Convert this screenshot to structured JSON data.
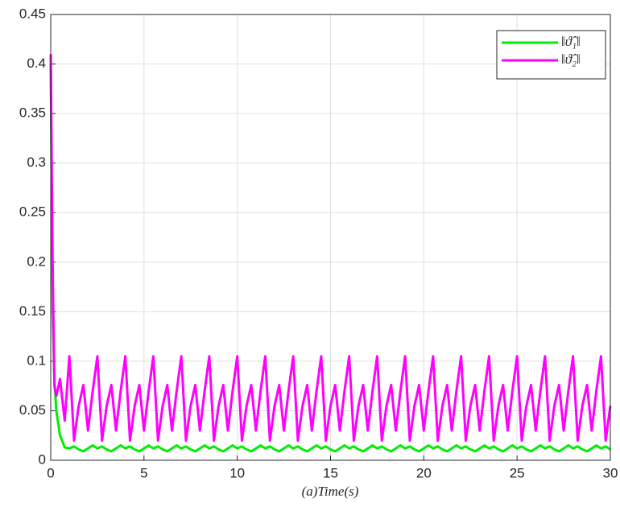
{
  "chart_data": {
    "type": "line",
    "xlabel": "(a)Time(s)",
    "x": [
      0,
      0.1,
      0.2,
      0.3,
      0.5,
      0.75,
      1.0,
      1.25,
      1.5,
      1.75,
      2.0,
      2.25,
      2.5,
      2.75,
      3.0,
      3.25,
      3.5,
      3.75,
      4.0,
      4.25,
      4.5,
      4.75,
      5.0,
      5.25,
      5.5,
      5.75,
      6.0,
      6.25,
      6.5,
      6.75,
      7.0,
      7.25,
      7.5,
      7.75,
      8.0,
      8.25,
      8.5,
      8.75,
      9.0,
      9.25,
      9.5,
      9.75,
      10.0,
      10.25,
      10.5,
      10.75,
      11.0,
      11.25,
      11.5,
      11.75,
      12.0,
      12.25,
      12.5,
      12.75,
      13.0,
      13.25,
      13.5,
      13.75,
      14.0,
      14.25,
      14.5,
      14.75,
      15.0,
      15.25,
      15.5,
      15.75,
      16.0,
      16.25,
      16.5,
      16.75,
      17.0,
      17.25,
      17.5,
      17.75,
      18.0,
      18.25,
      18.5,
      18.75,
      19.0,
      19.25,
      19.5,
      19.75,
      20.0,
      20.25,
      20.5,
      20.75,
      21.0,
      21.25,
      21.5,
      21.75,
      22.0,
      22.25,
      22.5,
      22.75,
      23.0,
      23.25,
      23.5,
      23.75,
      24.0,
      24.25,
      24.5,
      24.75,
      25.0,
      25.25,
      25.5,
      25.75,
      26.0,
      26.25,
      26.5,
      26.75,
      27.0,
      27.25,
      27.5,
      27.75,
      28.0,
      28.25,
      28.5,
      28.75,
      29.0,
      29.25,
      29.5,
      29.75,
      30.0
    ],
    "series": [
      {
        "name": "‖ϑ̂₁‖",
        "color": "#00ee00",
        "values": [
          0.4,
          0.15,
          0.08,
          0.05,
          0.025,
          0.013,
          0.012,
          0.014,
          0.011,
          0.009,
          0.012,
          0.015,
          0.012,
          0.014,
          0.011,
          0.009,
          0.012,
          0.015,
          0.012,
          0.014,
          0.011,
          0.009,
          0.012,
          0.015,
          0.012,
          0.014,
          0.011,
          0.009,
          0.012,
          0.015,
          0.012,
          0.014,
          0.011,
          0.009,
          0.012,
          0.015,
          0.012,
          0.014,
          0.011,
          0.009,
          0.012,
          0.015,
          0.012,
          0.014,
          0.011,
          0.009,
          0.012,
          0.015,
          0.012,
          0.014,
          0.011,
          0.009,
          0.012,
          0.015,
          0.012,
          0.014,
          0.011,
          0.009,
          0.012,
          0.015,
          0.012,
          0.014,
          0.011,
          0.009,
          0.012,
          0.015,
          0.012,
          0.014,
          0.011,
          0.009,
          0.012,
          0.015,
          0.012,
          0.014,
          0.011,
          0.009,
          0.012,
          0.015,
          0.012,
          0.014,
          0.011,
          0.009,
          0.012,
          0.015,
          0.012,
          0.014,
          0.011,
          0.009,
          0.012,
          0.015,
          0.012,
          0.014,
          0.011,
          0.009,
          0.012,
          0.015,
          0.012,
          0.014,
          0.011,
          0.009,
          0.012,
          0.015,
          0.012,
          0.014,
          0.011,
          0.009,
          0.012,
          0.015,
          0.012,
          0.014,
          0.011,
          0.009,
          0.012,
          0.015,
          0.012,
          0.014,
          0.011,
          0.009,
          0.012,
          0.015,
          0.012,
          0.014,
          0.011
        ]
      },
      {
        "name": "‖ϑ̂₂‖",
        "color": "#ff00ff",
        "values": [
          0.41,
          0.2,
          0.075,
          0.065,
          0.082,
          0.04,
          0.105,
          0.02,
          0.055,
          0.076,
          0.03,
          0.07,
          0.105,
          0.02,
          0.055,
          0.076,
          0.03,
          0.07,
          0.105,
          0.02,
          0.055,
          0.076,
          0.03,
          0.07,
          0.105,
          0.02,
          0.055,
          0.076,
          0.03,
          0.07,
          0.105,
          0.02,
          0.055,
          0.076,
          0.03,
          0.07,
          0.105,
          0.02,
          0.055,
          0.076,
          0.03,
          0.07,
          0.105,
          0.02,
          0.055,
          0.076,
          0.03,
          0.07,
          0.105,
          0.02,
          0.055,
          0.076,
          0.03,
          0.07,
          0.105,
          0.02,
          0.055,
          0.076,
          0.03,
          0.07,
          0.105,
          0.02,
          0.055,
          0.076,
          0.03,
          0.07,
          0.105,
          0.02,
          0.055,
          0.076,
          0.03,
          0.07,
          0.105,
          0.02,
          0.055,
          0.076,
          0.03,
          0.07,
          0.105,
          0.02,
          0.055,
          0.076,
          0.03,
          0.07,
          0.105,
          0.02,
          0.055,
          0.076,
          0.03,
          0.07,
          0.105,
          0.02,
          0.055,
          0.076,
          0.03,
          0.07,
          0.105,
          0.02,
          0.055,
          0.076,
          0.03,
          0.07,
          0.105,
          0.02,
          0.055,
          0.076,
          0.03,
          0.07,
          0.105,
          0.02,
          0.055,
          0.076,
          0.03,
          0.07,
          0.105,
          0.02,
          0.055,
          0.076,
          0.03,
          0.07,
          0.105,
          0.02,
          0.055
        ]
      }
    ],
    "xlim": [
      0,
      30
    ],
    "xticks": [
      0,
      5,
      10,
      15,
      20,
      25,
      30
    ],
    "ylim": [
      0,
      0.45
    ],
    "yticks": [
      0,
      0.05,
      0.1,
      0.15,
      0.2,
      0.25,
      0.3,
      0.35,
      0.4,
      0.45
    ],
    "grid": true,
    "legend": "upper right"
  }
}
